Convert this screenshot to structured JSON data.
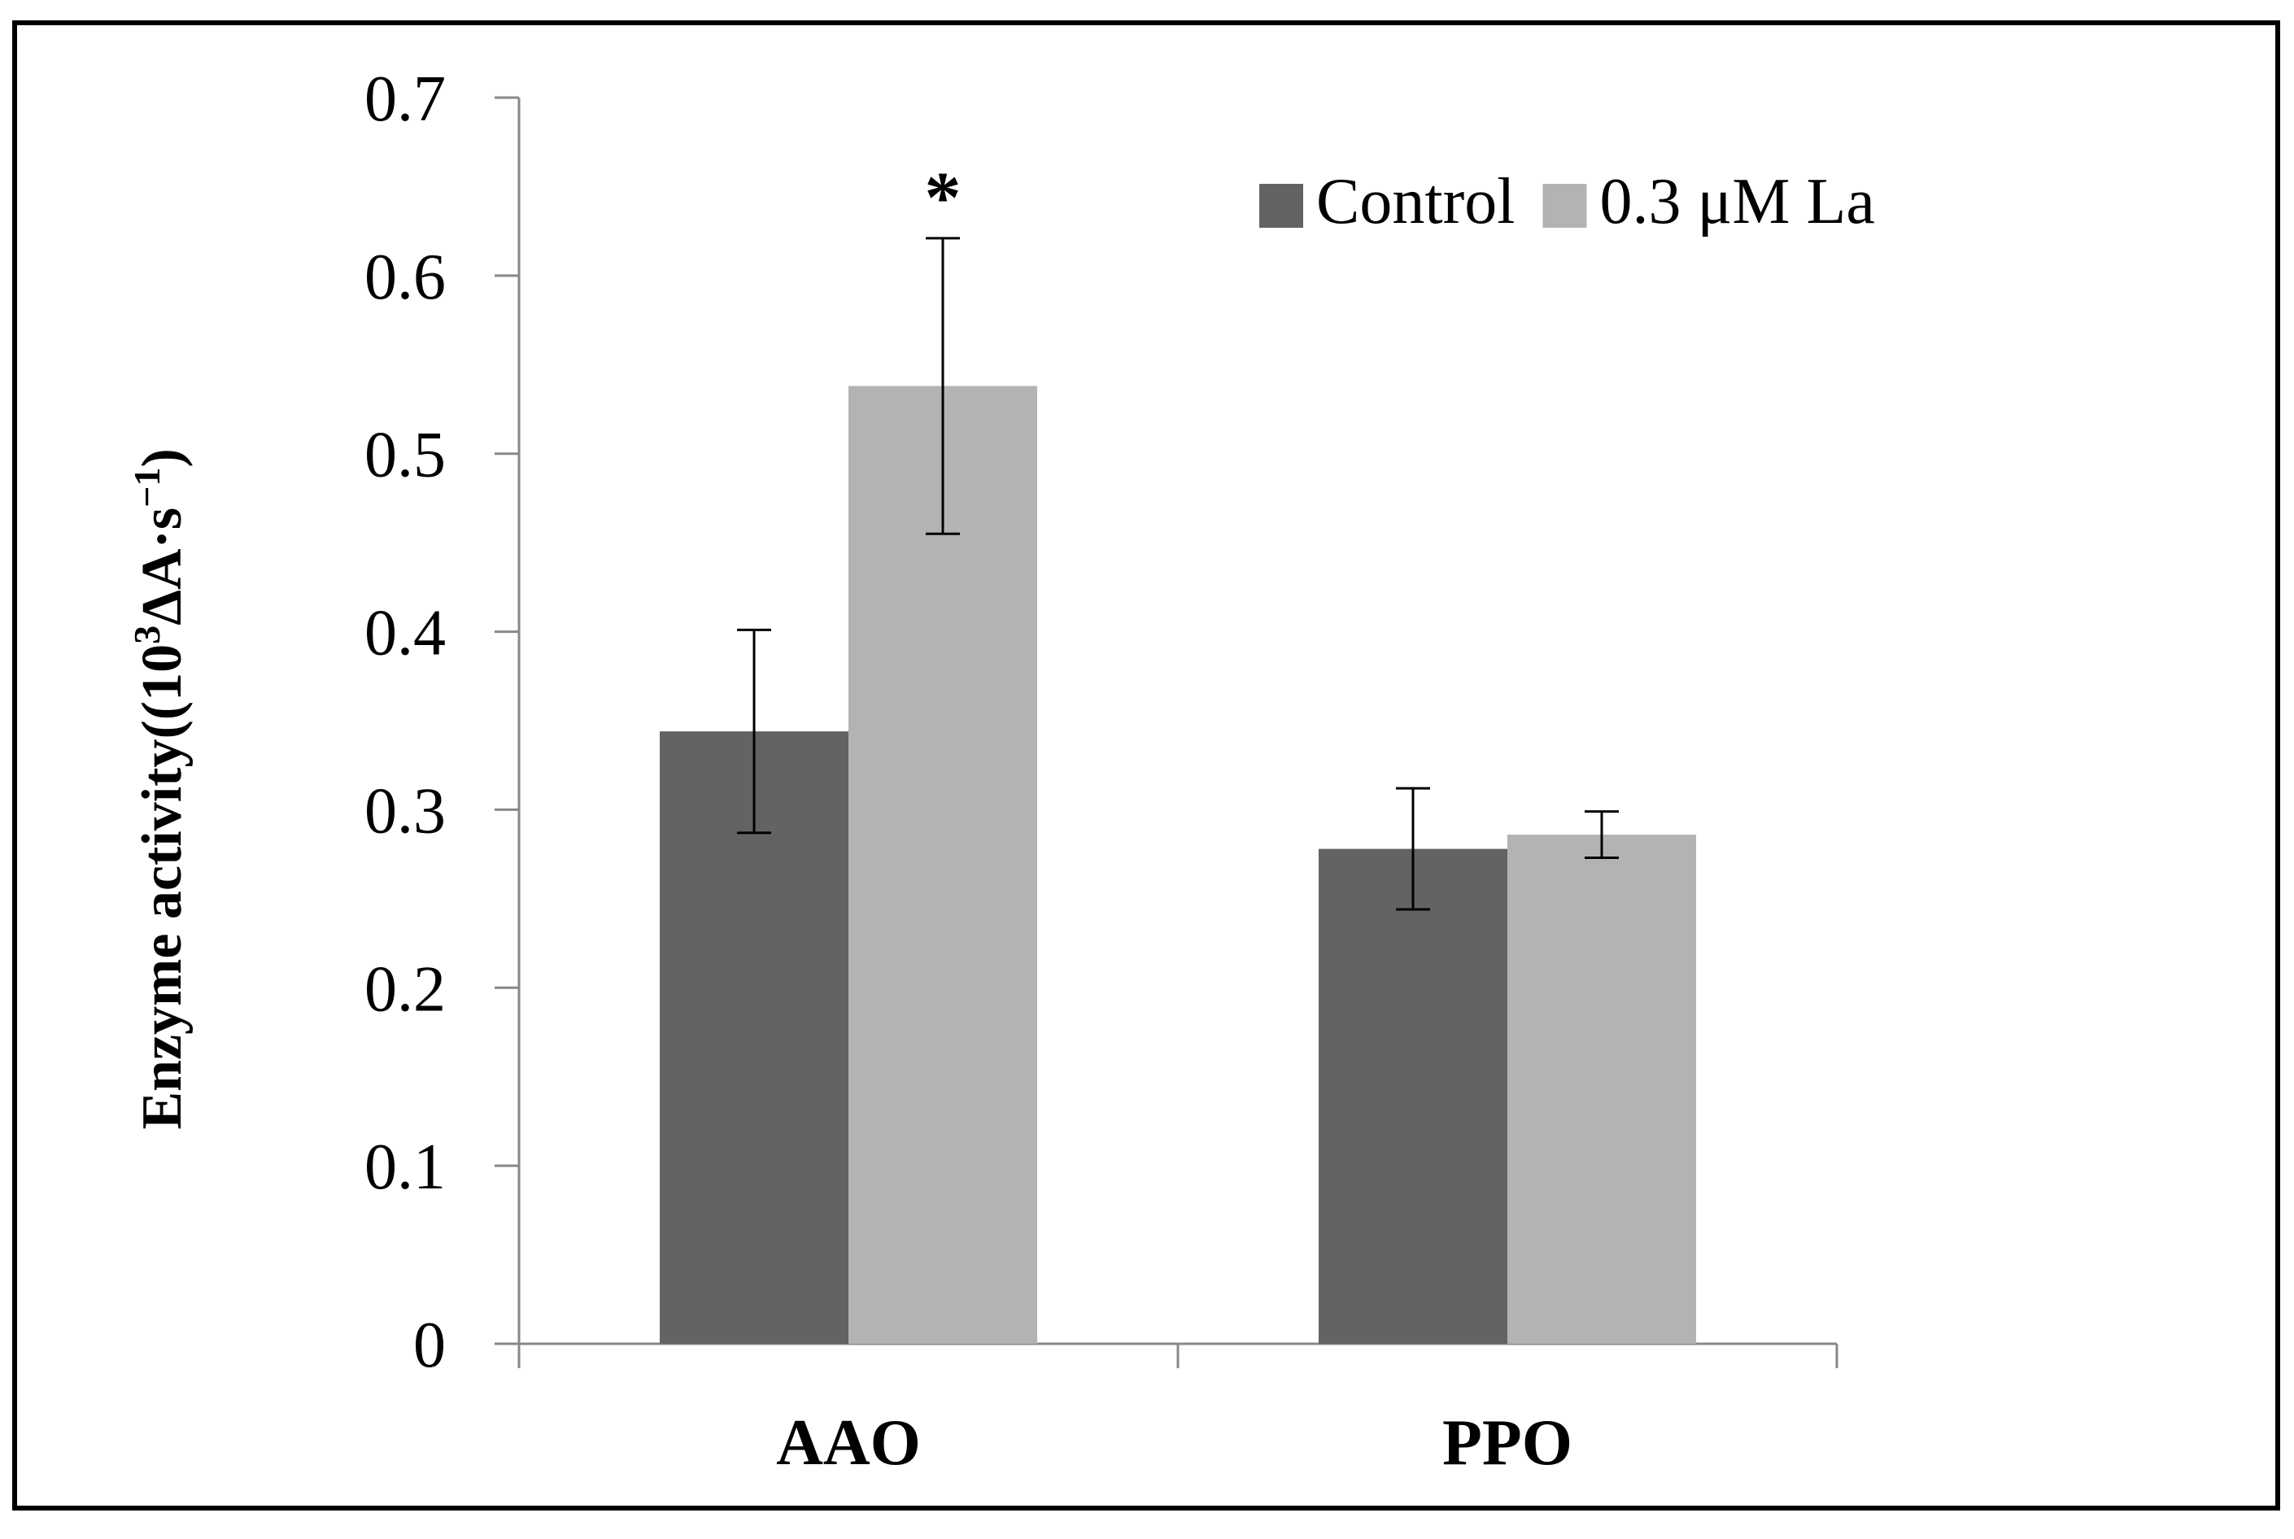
{
  "chart_data": {
    "type": "bar",
    "title": "",
    "xlabel": "",
    "ylabel": {
      "main": "Enzyme activity((10",
      "sup1": "3",
      "mid": "ΔA·s",
      "sup2": "−1",
      "close": ")"
    },
    "categories": [
      "AAO",
      "PPO"
    ],
    "series": [
      {
        "name": "Control",
        "color": "#636363",
        "values": [
          0.344,
          0.278
        ],
        "errors": [
          0.057,
          0.034
        ]
      },
      {
        "name": "0.3 μM La",
        "color": "#b3b3b3",
        "values": [
          0.538,
          0.286
        ],
        "errors": [
          0.083,
          0.013
        ]
      }
    ],
    "ylim": [
      0,
      0.7
    ],
    "yticks": [
      "0",
      "0.1",
      "0.2",
      "0.3",
      "0.4",
      "0.5",
      "0.6",
      "0.7"
    ],
    "grid": false,
    "legend_position": "top-right",
    "annotations": [
      {
        "text": "*",
        "category": "AAO",
        "series": 1
      }
    ]
  }
}
